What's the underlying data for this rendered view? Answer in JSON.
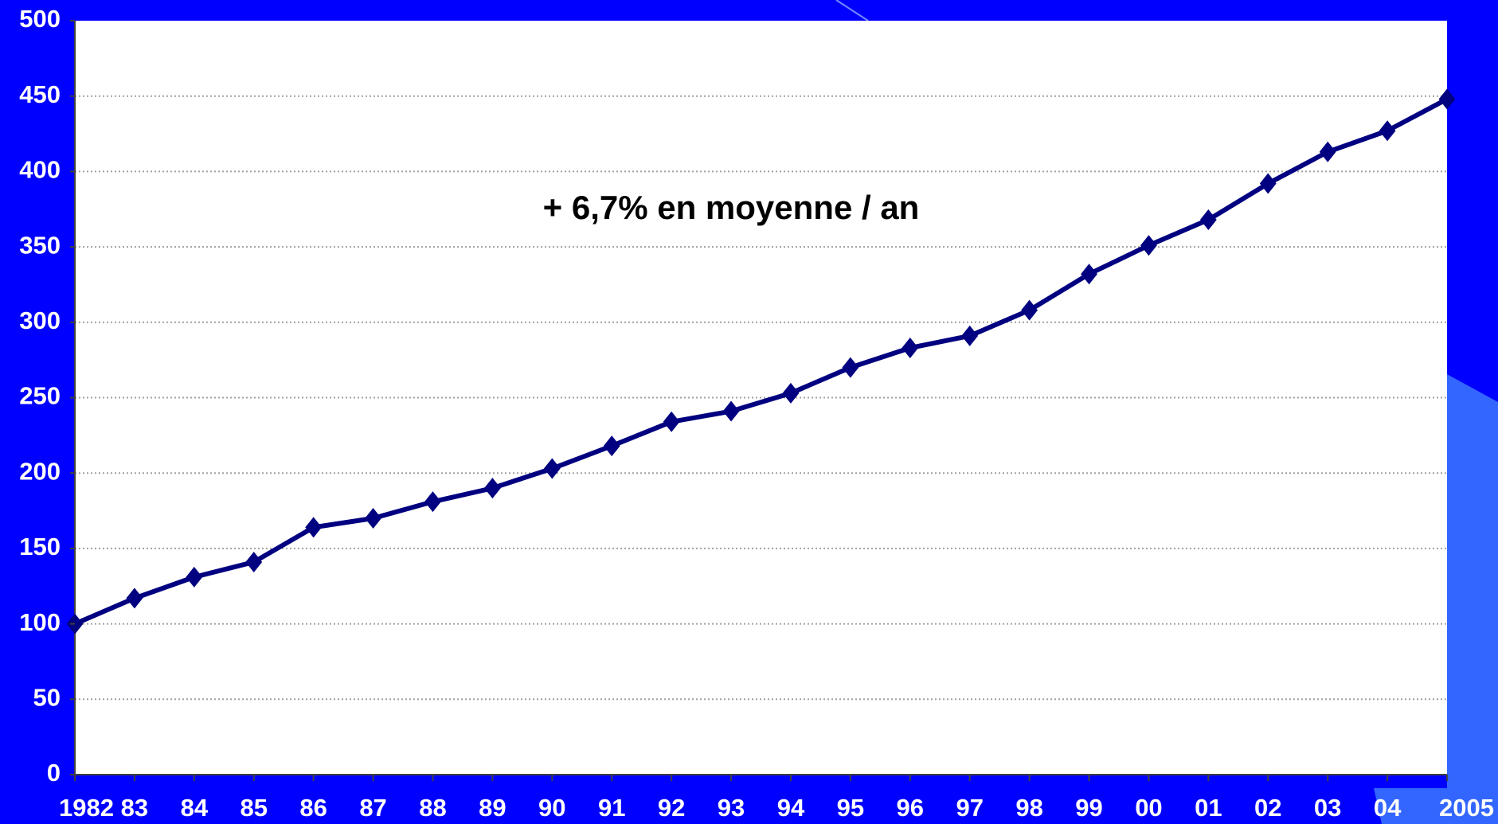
{
  "chart_data": {
    "type": "line",
    "annotation": "+ 6,7% en moyenne / an",
    "categories": [
      "1982",
      "83",
      "84",
      "85",
      "86",
      "87",
      "88",
      "89",
      "90",
      "91",
      "92",
      "93",
      "94",
      "95",
      "96",
      "97",
      "98",
      "99",
      "00",
      "01",
      "02",
      "03",
      "04",
      "2005"
    ],
    "series": [
      {
        "color": "#000080",
        "values": [
          100,
          117,
          131,
          141,
          164,
          170,
          181,
          190,
          203,
          218,
          234,
          241,
          253,
          270,
          283,
          291,
          308,
          332,
          351,
          368,
          392,
          413,
          427,
          448
        ]
      }
    ],
    "ylim": [
      0,
      500
    ],
    "yticks": [
      0,
      50,
      100,
      150,
      200,
      250,
      300,
      350,
      400,
      450,
      500
    ],
    "grid": true
  }
}
